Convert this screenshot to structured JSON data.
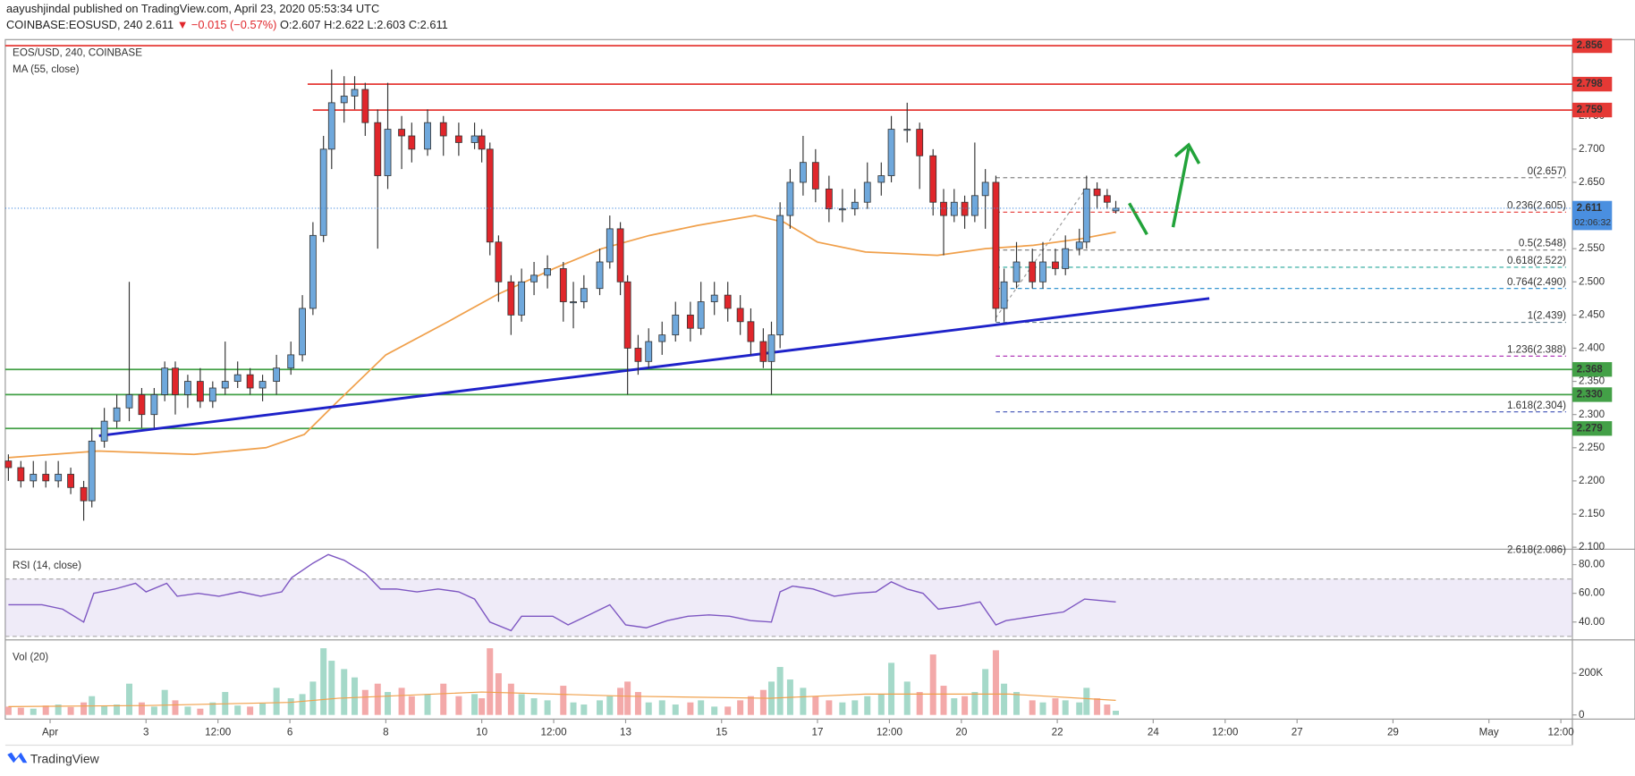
{
  "header": {
    "publisher": "aayushjindal published on TradingView.com, April 23, 2020 05:53:34 UTC",
    "symbol": "COINBASE:EOSUSD, 240",
    "last": "2.611",
    "change": "▼ −0.015 (−0.57%)",
    "ohlc": "O:2.607 H:2.622 L:2.603 C:2.611"
  },
  "footer": {
    "brand": "TradingView"
  },
  "chart_data": {
    "type": "candlestick",
    "legend": "EOS/USD, 240, COINBASE",
    "up_color": "#6fa8dc",
    "down_color": "#e0262b",
    "xlim": [
      0.065,
      32.74
    ],
    "xticks": [
      {
        "value": 1,
        "label": "Apr"
      },
      3,
      {
        "value": 4.5,
        "label": "12:00"
      },
      6,
      8,
      10,
      {
        "value": 11.5,
        "label": "12:00"
      },
      13,
      15,
      17,
      {
        "value": 18.5,
        "label": "12:00"
      },
      20,
      22,
      24,
      {
        "value": 25.5,
        "label": "12:00"
      },
      27,
      29,
      {
        "value": 31,
        "label": "May"
      },
      {
        "value": 32.5,
        "label": "12:00"
      }
    ],
    "ylim": [
      2.097,
      2.862
    ],
    "yticks": [
      {
        "value": 2.1,
        "label": "2.100"
      },
      {
        "value": 2.15,
        "label": "2.150"
      },
      {
        "value": 2.2,
        "label": "2.200"
      },
      {
        "value": 2.25,
        "label": "2.250"
      },
      {
        "value": 2.3,
        "label": "2.300"
      },
      {
        "value": 2.35,
        "label": "2.350"
      },
      {
        "value": 2.4,
        "label": "2.400"
      },
      {
        "value": 2.45,
        "label": "2.450"
      },
      {
        "value": 2.5,
        "label": "2.500"
      },
      {
        "value": 2.55,
        "label": "2.550"
      },
      {
        "value": 2.65,
        "label": "2.650"
      },
      {
        "value": 2.7,
        "label": "2.700"
      },
      {
        "value": 2.75,
        "label": "2.750"
      }
    ],
    "candles": [
      [
        0.13,
        2.23,
        2.24,
        2.2,
        2.22
      ],
      [
        0.39,
        2.22,
        2.23,
        2.19,
        2.2
      ],
      [
        0.65,
        2.2,
        2.23,
        2.19,
        2.21
      ],
      [
        0.91,
        2.21,
        2.23,
        2.19,
        2.2
      ],
      [
        1.17,
        2.2,
        2.23,
        2.19,
        2.21
      ],
      [
        1.43,
        2.21,
        2.22,
        2.18,
        2.19
      ],
      [
        1.7,
        2.19,
        2.2,
        2.14,
        2.17
      ],
      [
        1.87,
        2.17,
        2.28,
        2.16,
        2.26
      ],
      [
        2.13,
        2.26,
        2.31,
        2.25,
        2.29
      ],
      [
        2.39,
        2.29,
        2.33,
        2.28,
        2.31
      ],
      [
        2.65,
        2.31,
        2.5,
        2.29,
        2.33
      ],
      [
        2.91,
        2.33,
        2.34,
        2.28,
        2.3
      ],
      [
        3.17,
        2.3,
        2.34,
        2.28,
        2.33
      ],
      [
        3.39,
        2.33,
        2.38,
        2.32,
        2.37
      ],
      [
        3.61,
        2.37,
        2.38,
        2.3,
        2.33
      ],
      [
        3.87,
        2.33,
        2.36,
        2.31,
        2.35
      ],
      [
        4.13,
        2.35,
        2.37,
        2.31,
        2.32
      ],
      [
        4.39,
        2.32,
        2.35,
        2.31,
        2.34
      ],
      [
        4.65,
        2.34,
        2.41,
        2.33,
        2.35
      ],
      [
        4.91,
        2.35,
        2.38,
        2.34,
        2.36
      ],
      [
        5.17,
        2.36,
        2.37,
        2.33,
        2.34
      ],
      [
        5.43,
        2.34,
        2.36,
        2.32,
        2.35
      ],
      [
        5.72,
        2.35,
        2.39,
        2.33,
        2.37
      ],
      [
        6.02,
        2.37,
        2.41,
        2.36,
        2.39
      ],
      [
        6.26,
        2.39,
        2.48,
        2.38,
        2.46
      ],
      [
        6.48,
        2.46,
        2.59,
        2.45,
        2.57
      ],
      [
        6.7,
        2.57,
        2.72,
        2.56,
        2.7
      ],
      [
        6.87,
        2.7,
        2.82,
        2.67,
        2.77
      ],
      [
        7.13,
        2.77,
        2.81,
        2.74,
        2.78
      ],
      [
        7.35,
        2.78,
        2.81,
        2.76,
        2.79
      ],
      [
        7.57,
        2.79,
        2.8,
        2.72,
        2.74
      ],
      [
        7.83,
        2.74,
        2.76,
        2.55,
        2.66
      ],
      [
        8.04,
        2.66,
        2.8,
        2.64,
        2.73
      ],
      [
        8.33,
        2.73,
        2.75,
        2.67,
        2.72
      ],
      [
        8.54,
        2.72,
        2.74,
        2.68,
        2.7
      ],
      [
        8.87,
        2.7,
        2.76,
        2.69,
        2.74
      ],
      [
        9.2,
        2.74,
        2.75,
        2.69,
        2.72
      ],
      [
        9.52,
        2.72,
        2.74,
        2.69,
        2.71
      ],
      [
        9.85,
        2.71,
        2.74,
        2.7,
        2.72
      ],
      [
        10.0,
        2.72,
        2.73,
        2.68,
        2.7
      ],
      [
        10.17,
        2.7,
        2.71,
        2.54,
        2.56
      ],
      [
        10.35,
        2.56,
        2.57,
        2.47,
        2.5
      ],
      [
        10.61,
        2.5,
        2.51,
        2.42,
        2.45
      ],
      [
        10.83,
        2.45,
        2.52,
        2.44,
        2.5
      ],
      [
        11.09,
        2.5,
        2.53,
        2.48,
        2.51
      ],
      [
        11.37,
        2.51,
        2.54,
        2.49,
        2.52
      ],
      [
        11.7,
        2.52,
        2.53,
        2.44,
        2.47
      ],
      [
        11.91,
        2.47,
        2.5,
        2.43,
        2.47
      ],
      [
        12.13,
        2.47,
        2.51,
        2.46,
        2.49
      ],
      [
        12.46,
        2.49,
        2.55,
        2.48,
        2.53
      ],
      [
        12.67,
        2.53,
        2.6,
        2.52,
        2.58
      ],
      [
        12.89,
        2.58,
        2.59,
        2.48,
        2.5
      ],
      [
        13.04,
        2.5,
        2.51,
        2.33,
        2.4
      ],
      [
        13.26,
        2.4,
        2.42,
        2.36,
        2.38
      ],
      [
        13.48,
        2.38,
        2.43,
        2.37,
        2.41
      ],
      [
        13.76,
        2.41,
        2.44,
        2.39,
        2.42
      ],
      [
        14.04,
        2.42,
        2.47,
        2.41,
        2.45
      ],
      [
        14.35,
        2.45,
        2.47,
        2.41,
        2.43
      ],
      [
        14.57,
        2.43,
        2.5,
        2.42,
        2.47
      ],
      [
        14.85,
        2.47,
        2.5,
        2.45,
        2.48
      ],
      [
        15.13,
        2.48,
        2.5,
        2.44,
        2.46
      ],
      [
        15.39,
        2.46,
        2.48,
        2.42,
        2.44
      ],
      [
        15.61,
        2.44,
        2.46,
        2.39,
        2.41
      ],
      [
        15.87,
        2.41,
        2.43,
        2.37,
        2.38
      ],
      [
        16.04,
        2.38,
        2.44,
        2.33,
        2.42
      ],
      [
        16.22,
        2.42,
        2.62,
        2.4,
        2.6
      ],
      [
        16.43,
        2.6,
        2.67,
        2.58,
        2.65
      ],
      [
        16.7,
        2.65,
        2.72,
        2.63,
        2.68
      ],
      [
        16.96,
        2.68,
        2.7,
        2.62,
        2.64
      ],
      [
        17.24,
        2.64,
        2.66,
        2.59,
        2.61
      ],
      [
        17.52,
        2.61,
        2.64,
        2.59,
        2.61
      ],
      [
        17.78,
        2.61,
        2.64,
        2.6,
        2.62
      ],
      [
        18.04,
        2.62,
        2.68,
        2.61,
        2.65
      ],
      [
        18.33,
        2.65,
        2.68,
        2.63,
        2.66
      ],
      [
        18.54,
        2.66,
        2.75,
        2.65,
        2.73
      ],
      [
        18.87,
        2.73,
        2.77,
        2.71,
        2.73
      ],
      [
        19.13,
        2.73,
        2.74,
        2.64,
        2.69
      ],
      [
        19.41,
        2.69,
        2.7,
        2.6,
        2.62
      ],
      [
        19.63,
        2.62,
        2.64,
        2.54,
        2.6
      ],
      [
        19.85,
        2.6,
        2.64,
        2.59,
        2.62
      ],
      [
        20.07,
        2.62,
        2.63,
        2.58,
        2.6
      ],
      [
        20.28,
        2.6,
        2.71,
        2.59,
        2.63
      ],
      [
        20.5,
        2.63,
        2.67,
        2.58,
        2.65
      ],
      [
        20.72,
        2.65,
        2.66,
        2.44,
        2.46
      ],
      [
        20.89,
        2.46,
        2.52,
        2.44,
        2.5
      ],
      [
        21.15,
        2.5,
        2.56,
        2.49,
        2.53
      ],
      [
        21.48,
        2.53,
        2.55,
        2.49,
        2.5
      ],
      [
        21.7,
        2.5,
        2.56,
        2.49,
        2.53
      ],
      [
        21.96,
        2.53,
        2.55,
        2.51,
        2.52
      ],
      [
        22.17,
        2.52,
        2.57,
        2.51,
        2.55
      ],
      [
        22.46,
        2.55,
        2.58,
        2.54,
        2.56
      ],
      [
        22.61,
        2.56,
        2.66,
        2.55,
        2.64
      ],
      [
        22.83,
        2.64,
        2.65,
        2.61,
        2.63
      ],
      [
        23.04,
        2.63,
        2.64,
        2.61,
        2.62
      ],
      [
        23.22,
        2.607,
        2.622,
        2.603,
        2.611
      ]
    ],
    "ma": {
      "name": "MA (55, close)",
      "color": "#f0a04b",
      "x": [
        0.13,
        2,
        4,
        5.5,
        6.3,
        7,
        8,
        9.3,
        10.3,
        11.5,
        12.5,
        13.5,
        14.5,
        15.7,
        16.3,
        17,
        18,
        19.5,
        20.5,
        21.5,
        22.5,
        23.22
      ],
      "values": [
        2.235,
        2.245,
        2.24,
        2.25,
        2.27,
        2.32,
        2.39,
        2.44,
        2.48,
        2.52,
        2.55,
        2.57,
        2.585,
        2.6,
        2.59,
        2.56,
        2.545,
        2.54,
        2.55,
        2.555,
        2.565,
        2.575
      ]
    },
    "levels": [
      {
        "value": 2.856,
        "color": "#e53935"
      },
      {
        "value": 2.798,
        "color": "#e53935"
      },
      {
        "value": 2.759,
        "color": "#e53935"
      },
      {
        "value": 2.368,
        "color": "#43a047"
      },
      {
        "value": 2.33,
        "label": "2.330",
        "color": "#43a047"
      },
      {
        "value": 2.279,
        "color": "#43a047"
      }
    ],
    "current": {
      "value": 2.611,
      "countdown": "02:06:32",
      "color": "#4a8fe0"
    },
    "trendline": {
      "x": [
        2.02,
        25.17
      ],
      "y": [
        2.268,
        2.475
      ],
      "color": "#1e22c9"
    },
    "fib": [
      {
        "value": 2.657,
        "label": "0(2.657)",
        "color": "#888888"
      },
      {
        "value": 2.605,
        "label": "0.236(2.605)",
        "color": "#e53935"
      },
      {
        "value": 2.548,
        "label": "0.5(2.548)",
        "color": "#777777"
      },
      {
        "value": 2.522,
        "label": "0.618(2.522)",
        "color": "#26a69a"
      },
      {
        "value": 2.49,
        "label": "0.764(2.490)",
        "color": "#1e88c9"
      },
      {
        "value": 2.439,
        "label": "1(2.439)",
        "color": "#607d8b"
      },
      {
        "value": 2.388,
        "label": "1.236(2.388)",
        "color": "#b03ab8"
      },
      {
        "value": 2.304,
        "label": "1.618(2.304)",
        "color": "#3f51b5"
      },
      {
        "value": 2.086,
        "label": "2.618(2.086)",
        "color": "#b03ab8"
      }
    ],
    "rsi": {
      "name": "RSI (14, close)",
      "color": "#7e57c2",
      "ylim": [
        29,
        90
      ],
      "yticks": [
        {
          "value": 40,
          "label": "40.00"
        },
        {
          "value": 60,
          "label": "60.00"
        },
        {
          "value": 80,
          "label": "80.00"
        }
      ],
      "band": [
        30,
        70
      ],
      "x": [
        0.13,
        0.83,
        1.26,
        1.7,
        1.91,
        2.35,
        2.78,
        3.0,
        3.43,
        3.65,
        4.09,
        4.52,
        4.96,
        5.39,
        5.83,
        6.04,
        6.48,
        6.8,
        7.13,
        7.57,
        7.89,
        8.22,
        8.65,
        9.09,
        9.52,
        9.85,
        10.17,
        10.61,
        10.83,
        11.48,
        11.8,
        12.24,
        12.67,
        13.0,
        13.43,
        13.87,
        14.3,
        14.74,
        15.17,
        15.61,
        16.04,
        16.22,
        16.48,
        16.91,
        17.35,
        17.78,
        18.22,
        18.54,
        18.87,
        19.2,
        19.52,
        19.96,
        20.39,
        20.72,
        20.93,
        21.7,
        22.13,
        22.57,
        23.22
      ],
      "values": [
        52,
        52,
        49,
        40,
        60,
        63,
        67,
        61,
        67,
        58,
        60,
        58,
        61,
        58,
        61,
        71,
        81,
        87,
        83,
        74,
        63,
        63,
        61,
        63,
        61,
        56,
        40,
        34,
        44,
        44,
        38,
        45,
        52,
        38,
        36,
        41,
        44,
        45,
        44,
        41,
        40,
        61,
        65,
        63,
        58,
        60,
        61,
        68,
        63,
        60,
        49,
        51,
        54,
        38,
        41,
        45,
        47,
        56,
        54
      ]
    },
    "vol": {
      "name": "Vol (20)",
      "up_color": "#a5d9c9",
      "down_color": "#f3a9a9",
      "ylim": [
        -20000,
        345000
      ],
      "yticks": [
        0,
        {
          "value": 200000,
          "label": "200K"
        }
      ],
      "values": [
        40000,
        35000,
        30000,
        45000,
        50000,
        38000,
        60000,
        90000,
        45000,
        50000,
        150000,
        60000,
        40000,
        120000,
        70000,
        40000,
        30000,
        60000,
        110000,
        45000,
        40000,
        55000,
        130000,
        80000,
        100000,
        160000,
        320000,
        260000,
        220000,
        180000,
        120000,
        150000,
        110000,
        130000,
        90000,
        100000,
        150000,
        90000,
        100000,
        80000,
        320000,
        200000,
        150000,
        100000,
        80000,
        70000,
        140000,
        60000,
        50000,
        70000,
        90000,
        130000,
        160000,
        110000,
        60000,
        70000,
        50000,
        60000,
        70000,
        40000,
        40000,
        70000,
        90000,
        120000,
        160000,
        230000,
        170000,
        130000,
        90000,
        70000,
        60000,
        70000,
        90000,
        100000,
        250000,
        160000,
        110000,
        290000,
        140000,
        80000,
        90000,
        110000,
        220000,
        310000,
        150000,
        110000,
        70000,
        60000,
        80000,
        70000,
        60000,
        130000,
        80000,
        50000,
        20000
      ],
      "ma": {
        "color": "#f0a04b",
        "x": [
          0.13,
          3,
          6,
          7,
          10,
          13,
          16,
          18,
          21,
          23.22
        ],
        "values": [
          40000,
          45000,
          60000,
          80000,
          110000,
          90000,
          80000,
          100000,
          100000,
          70000
        ]
      }
    }
  }
}
